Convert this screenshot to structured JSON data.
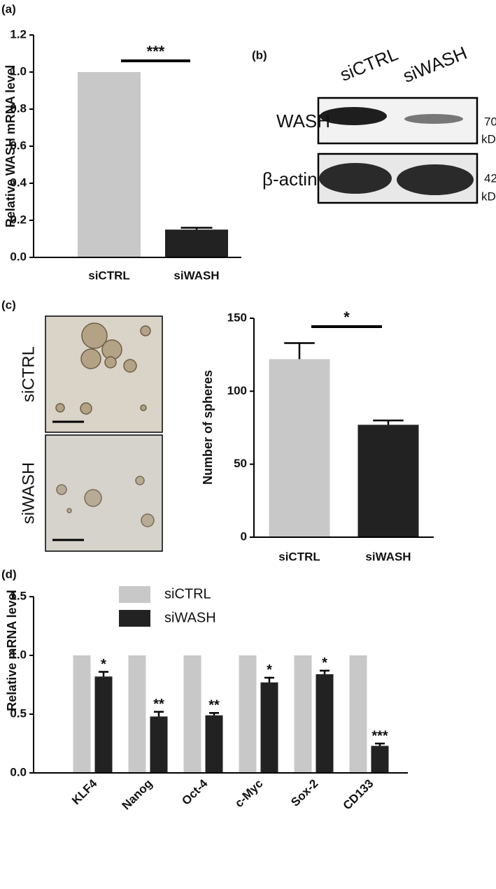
{
  "panels": [
    "(a)",
    "(b)",
    "(c)",
    "(d)"
  ],
  "chart_data": [
    {
      "type": "bar",
      "y_label": "Relative WASH mRNA level",
      "categories": [
        "siCTRL",
        "siWASH"
      ],
      "values": [
        1.0,
        0.15
      ],
      "errors": [
        null,
        0.01
      ],
      "colors": [
        "#c8c8c8",
        "#222222"
      ],
      "annotation": "***",
      "ylim": [
        0,
        1.2
      ],
      "yticks": [
        {
          "value": 0,
          "label": "0.0"
        },
        0.2,
        0.4,
        0.6,
        0.8,
        {
          "value": 1,
          "label": "1.0"
        },
        1.2
      ]
    },
    {
      "type": "bar",
      "y_label": "Number of spheres",
      "categories": [
        "siCTRL",
        "siWASH"
      ],
      "values": [
        122,
        77
      ],
      "errors": [
        11,
        3
      ],
      "colors": [
        "#c8c8c8",
        "#222222"
      ],
      "annotation": "*",
      "ylim": [
        0,
        150
      ],
      "yticks": [
        0,
        50,
        100,
        150
      ]
    },
    {
      "type": "grouped_bar",
      "y_label": "Relative mRNA level",
      "categories": [
        "KLF4",
        "Nanog",
        "Oct-4",
        "c-Myc",
        "Sox-2",
        "CD133"
      ],
      "series": [
        {
          "name": "siCTRL",
          "color": "#c8c8c8",
          "values": [
            1,
            1,
            1,
            1,
            1,
            1
          ]
        },
        {
          "name": "siWASH",
          "color": "#222222",
          "values": [
            0.82,
            0.48,
            0.49,
            0.77,
            0.84,
            0.23
          ],
          "errors": [
            0.04,
            0.04,
            0.02,
            0.04,
            0.03,
            0.02
          ],
          "annotations": [
            "*",
            "**",
            "**",
            "*",
            "*",
            "***"
          ]
        }
      ],
      "ylim": [
        0,
        1.5
      ],
      "yticks": [
        {
          "value": 0,
          "label": "0.0"
        },
        0.5,
        {
          "value": 1,
          "label": "1.0"
        },
        1.5
      ]
    }
  ],
  "blot": {
    "lanes": [
      "siCTRL",
      "siWASH"
    ],
    "rows": [
      {
        "protein": "WASH",
        "size": "70",
        "unit": "kDa"
      },
      {
        "protein": "β-actin",
        "size": "42",
        "unit": "kDa"
      }
    ]
  },
  "spheres": {
    "rows": [
      "siCTRL",
      "siWASH"
    ]
  }
}
